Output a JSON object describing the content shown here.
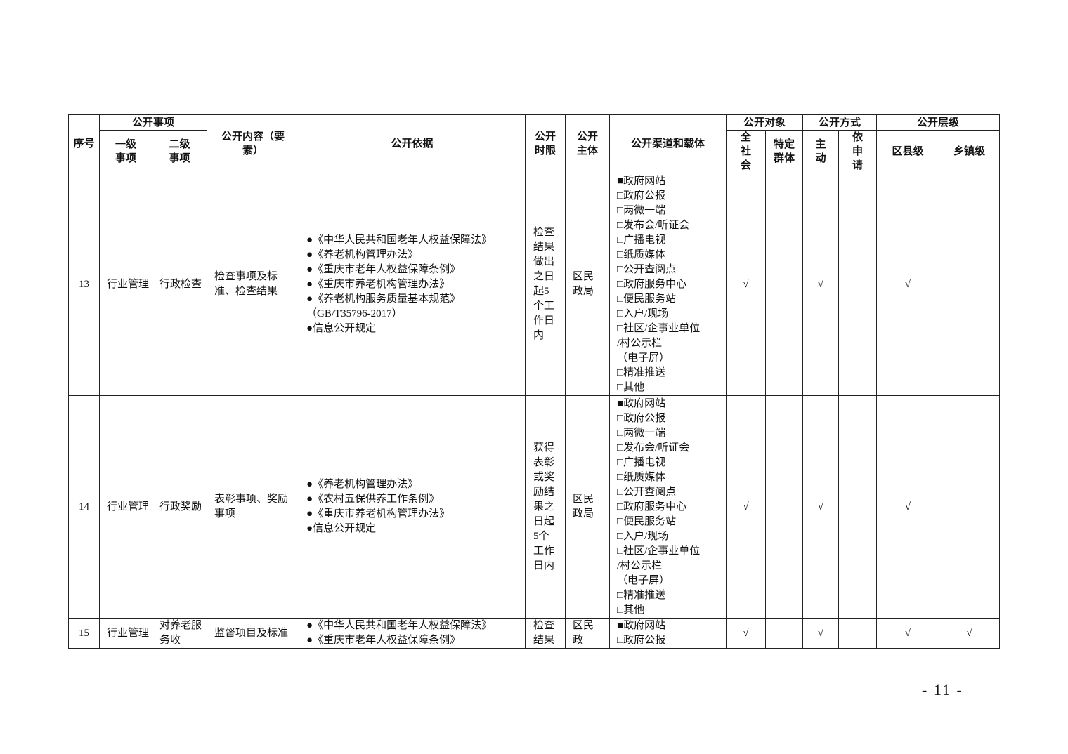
{
  "header": {
    "seq": "序号",
    "items_group": "公开事项",
    "level1": "一级事项",
    "level2": "二级事项",
    "content": "公开内容（要素）",
    "basis": "公开依据",
    "time_limit": "公开时限",
    "subject": "公开主体",
    "channels": "公开渠道和载体",
    "target_group": "公开对象",
    "target_all": "全社会",
    "target_specific": "特定群体",
    "method_group": "公开方式",
    "method_active": "主动",
    "method_apply": "依申请",
    "level_group": "公开层级",
    "level_county": "区县级",
    "level_town": "乡镇级"
  },
  "rows": [
    {
      "seq": "13",
      "level1": "行业管理",
      "level2": "行政检查",
      "content": "检查事项及标准、检查结果",
      "basis": [
        "●《中华人民共和国老年人权益保障法》",
        "●《养老机构管理办法》",
        "●《重庆市老年人权益保障条例》",
        "●《重庆市养老机构管理办法》",
        "●《养老机构服务质量基本规范》",
        "（GB/T35796-2017）",
        "●信息公开规定"
      ],
      "time_limit": "检查结果做出之日起5个工作日内",
      "subject": "区民政局",
      "channels": [
        "■政府网站",
        "□政府公报",
        "□两微一端",
        "□发布会/听证会",
        "□广播电视",
        "□纸质媒体",
        "□公开查阅点",
        "□政府服务中心",
        "□便民服务站",
        "□入户/现场",
        "□社区/企事业单位",
        "/村公示栏",
        "（电子屏）",
        "□精准推送",
        "□其他"
      ],
      "target_all": "√",
      "target_specific": "",
      "method_active": "√",
      "method_apply": "",
      "level_county": "√",
      "level_town": ""
    },
    {
      "seq": "14",
      "level1": "行业管理",
      "level2": "行政奖励",
      "content": "表彰事项、奖励事项",
      "basis": [
        "●《养老机构管理办法》",
        "●《农村五保供养工作条例》",
        "●《重庆市养老机构管理办法》",
        "●信息公开规定"
      ],
      "time_limit": "获得表彰或奖励结果之日起5个工作日内",
      "subject": "区民政局",
      "channels": [
        "■政府网站",
        "□政府公报",
        "□两微一端",
        "□发布会/听证会",
        "□广播电视",
        "□纸质媒体",
        "□公开查阅点",
        "□政府服务中心",
        "□便民服务站",
        "□入户/现场",
        "□社区/企事业单位",
        "/村公示栏",
        "（电子屏）",
        "□精准推送",
        "□其他"
      ],
      "target_all": "√",
      "target_specific": "",
      "method_active": "√",
      "method_apply": "",
      "level_county": "√",
      "level_town": ""
    },
    {
      "seq": "15",
      "level1": "行业管理",
      "level2": "对养老服务收",
      "content": "监督项目及标准",
      "basis": [
        "●《中华人民共和国老年人权益保障法》",
        "●《重庆市老年人权益保障条例》"
      ],
      "time_limit": "检查结果",
      "subject": "区民政局、",
      "channels": [
        "■政府网站",
        "□政府公报"
      ],
      "target_all": "√",
      "target_specific": "",
      "method_active": "√",
      "method_apply": "",
      "level_county": "√",
      "level_town": "√"
    }
  ],
  "page_number": "- 11 -"
}
